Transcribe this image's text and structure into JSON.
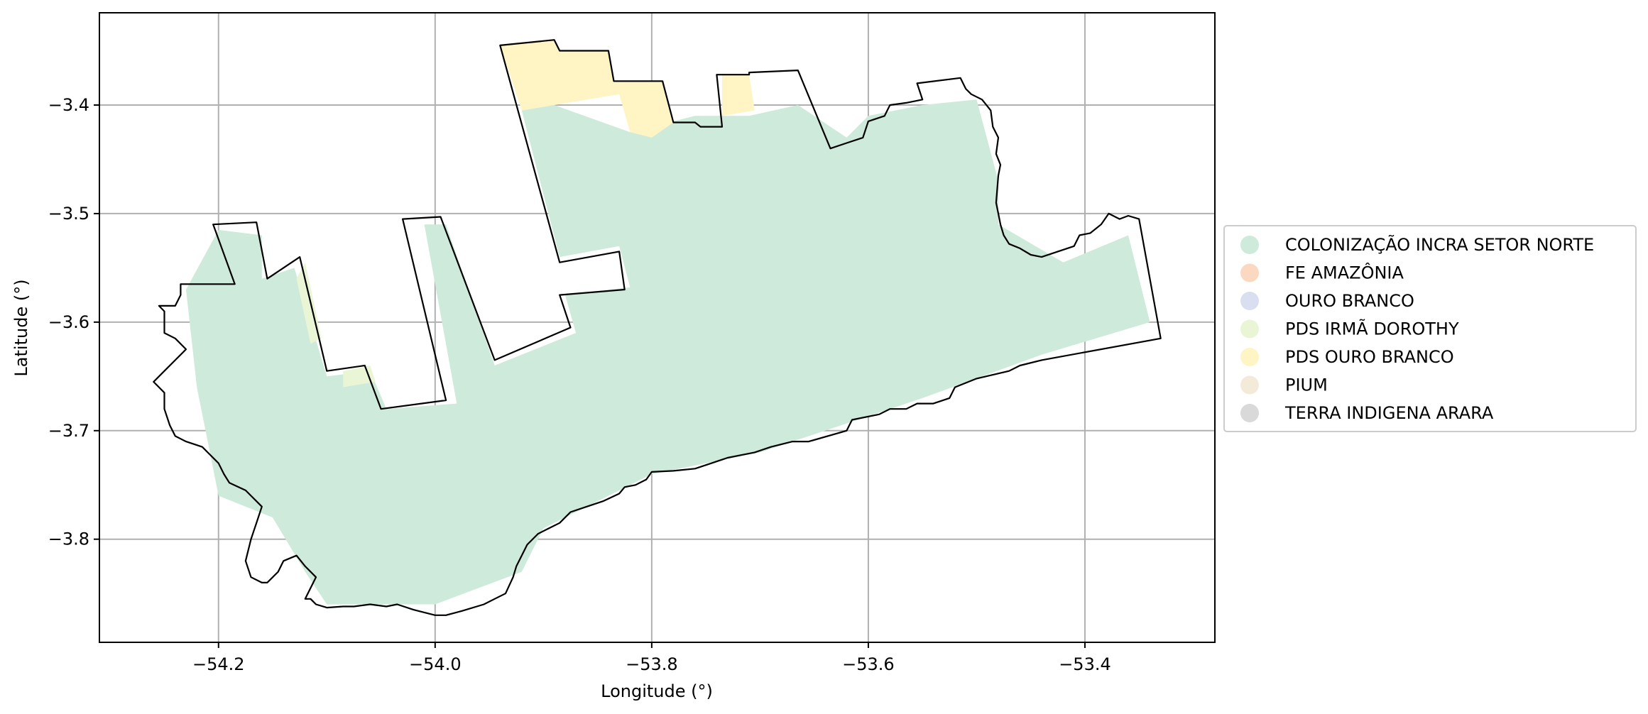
{
  "chart_data": {
    "type": "map",
    "xlabel": "Longitude (°)",
    "ylabel": "Latitude (°)",
    "xlim": [
      -54.31,
      -53.28
    ],
    "ylim": [
      -3.895,
      -3.315
    ],
    "grid": true,
    "x_ticks": [
      -54.2,
      -54.0,
      -53.8,
      -53.6,
      -53.4
    ],
    "x_tick_labels": [
      "−54.2",
      "−54.0",
      "−53.8",
      "−53.6",
      "−53.4"
    ],
    "y_ticks": [
      -3.4,
      -3.5,
      -3.6,
      -3.7,
      -3.8
    ],
    "y_tick_labels": [
      "−3.4",
      "−3.5",
      "−3.6",
      "−3.7",
      "−3.8"
    ],
    "legend_placement": "center-right outside",
    "legend": [
      {
        "label": "COLONIZAÇÃO INCRA SETOR NORTE",
        "color": "#cdeadb"
      },
      {
        "label": "FE AMAZÔNIA",
        "color": "#fbd8c0"
      },
      {
        "label": "OURO BRANCO",
        "color": "#d9dff0"
      },
      {
        "label": "PDS IRMÃ DOROTHY",
        "color": "#eaf5d6"
      },
      {
        "label": "PDS OURO BRANCO",
        "color": "#fef4c4"
      },
      {
        "label": "PIUM",
        "color": "#f4ead9"
      },
      {
        "label": "TERRA INDIGENA ARARA",
        "color": "#d9d9d9"
      }
    ],
    "boundary": [
      [
        -53.94,
        -3.345
      ],
      [
        -53.89,
        -3.34
      ],
      [
        -53.885,
        -3.35
      ],
      [
        -53.84,
        -3.35
      ],
      [
        -53.835,
        -3.378
      ],
      [
        -53.79,
        -3.378
      ],
      [
        -53.78,
        -3.416
      ],
      [
        -53.76,
        -3.416
      ],
      [
        -53.755,
        -3.42
      ],
      [
        -53.735,
        -3.42
      ],
      [
        -53.74,
        -3.372
      ],
      [
        -53.71,
        -3.372
      ],
      [
        -53.71,
        -3.37
      ],
      [
        -53.665,
        -3.368
      ],
      [
        -53.635,
        -3.44
      ],
      [
        -53.62,
        -3.435
      ],
      [
        -53.605,
        -3.43
      ],
      [
        -53.6,
        -3.415
      ],
      [
        -53.585,
        -3.41
      ],
      [
        -53.58,
        -3.4
      ],
      [
        -53.565,
        -3.398
      ],
      [
        -53.55,
        -3.395
      ],
      [
        -53.555,
        -3.38
      ],
      [
        -53.515,
        -3.375
      ],
      [
        -53.51,
        -3.385
      ],
      [
        -53.505,
        -3.39
      ],
      [
        -53.495,
        -3.395
      ],
      [
        -53.487,
        -3.405
      ],
      [
        -53.485,
        -3.42
      ],
      [
        -53.48,
        -3.43
      ],
      [
        -53.482,
        -3.445
      ],
      [
        -53.478,
        -3.455
      ],
      [
        -53.48,
        -3.465
      ],
      [
        -53.482,
        -3.49
      ],
      [
        -53.48,
        -3.5
      ],
      [
        -53.478,
        -3.51
      ],
      [
        -53.475,
        -3.52
      ],
      [
        -53.47,
        -3.528
      ],
      [
        -53.46,
        -3.532
      ],
      [
        -53.45,
        -3.538
      ],
      [
        -53.44,
        -3.54
      ],
      [
        -53.425,
        -3.535
      ],
      [
        -53.41,
        -3.53
      ],
      [
        -53.405,
        -3.52
      ],
      [
        -53.395,
        -3.518
      ],
      [
        -53.385,
        -3.51
      ],
      [
        -53.378,
        -3.5
      ],
      [
        -53.368,
        -3.505
      ],
      [
        -53.36,
        -3.502
      ],
      [
        -53.35,
        -3.505
      ],
      [
        -53.33,
        -3.615
      ],
      [
        -53.44,
        -3.635
      ],
      [
        -53.46,
        -3.64
      ],
      [
        -53.47,
        -3.645
      ],
      [
        -53.5,
        -3.652
      ],
      [
        -53.52,
        -3.66
      ],
      [
        -53.525,
        -3.67
      ],
      [
        -53.54,
        -3.675
      ],
      [
        -53.555,
        -3.675
      ],
      [
        -53.565,
        -3.68
      ],
      [
        -53.58,
        -3.68
      ],
      [
        -53.59,
        -3.685
      ],
      [
        -53.615,
        -3.69
      ],
      [
        -53.62,
        -3.7
      ],
      [
        -53.655,
        -3.71
      ],
      [
        -53.67,
        -3.71
      ],
      [
        -53.69,
        -3.715
      ],
      [
        -53.705,
        -3.72
      ],
      [
        -53.715,
        -3.722
      ],
      [
        -53.73,
        -3.725
      ],
      [
        -53.745,
        -3.73
      ],
      [
        -53.76,
        -3.735
      ],
      [
        -53.78,
        -3.737
      ],
      [
        -53.8,
        -3.738
      ],
      [
        -53.805,
        -3.745
      ],
      [
        -53.815,
        -3.75
      ],
      [
        -53.825,
        -3.752
      ],
      [
        -53.83,
        -3.758
      ],
      [
        -53.845,
        -3.765
      ],
      [
        -53.86,
        -3.77
      ],
      [
        -53.875,
        -3.775
      ],
      [
        -53.885,
        -3.785
      ],
      [
        -53.895,
        -3.79
      ],
      [
        -53.905,
        -3.795
      ],
      [
        -53.915,
        -3.805
      ],
      [
        -53.92,
        -3.815
      ],
      [
        -53.925,
        -3.825
      ],
      [
        -53.928,
        -3.835
      ],
      [
        -53.935,
        -3.85
      ],
      [
        -53.945,
        -3.855
      ],
      [
        -53.955,
        -3.86
      ],
      [
        -53.975,
        -3.866
      ],
      [
        -53.99,
        -3.87
      ],
      [
        -54.0,
        -3.87
      ],
      [
        -54.02,
        -3.865
      ],
      [
        -54.035,
        -3.86
      ],
      [
        -54.045,
        -3.862
      ],
      [
        -54.06,
        -3.86
      ],
      [
        -54.075,
        -3.862
      ],
      [
        -54.085,
        -3.862
      ],
      [
        -54.1,
        -3.863
      ],
      [
        -54.11,
        -3.86
      ],
      [
        -54.115,
        -3.855
      ],
      [
        -54.12,
        -3.855
      ],
      [
        -54.115,
        -3.845
      ],
      [
        -54.11,
        -3.835
      ],
      [
        -54.12,
        -3.825
      ],
      [
        -54.128,
        -3.815
      ],
      [
        -54.14,
        -3.82
      ],
      [
        -54.145,
        -3.83
      ],
      [
        -54.155,
        -3.84
      ],
      [
        -54.16,
        -3.84
      ],
      [
        -54.17,
        -3.835
      ],
      [
        -54.175,
        -3.82
      ],
      [
        -54.17,
        -3.8
      ],
      [
        -54.165,
        -3.785
      ],
      [
        -54.16,
        -3.77
      ],
      [
        -54.17,
        -3.76
      ],
      [
        -54.175,
        -3.755
      ],
      [
        -54.19,
        -3.748
      ],
      [
        -54.195,
        -3.74
      ],
      [
        -54.2,
        -3.73
      ],
      [
        -54.21,
        -3.72
      ],
      [
        -54.215,
        -3.715
      ],
      [
        -54.23,
        -3.71
      ],
      [
        -54.24,
        -3.705
      ],
      [
        -54.245,
        -3.695
      ],
      [
        -54.25,
        -3.68
      ],
      [
        -54.25,
        -3.665
      ],
      [
        -54.255,
        -3.66
      ],
      [
        -54.26,
        -3.655
      ],
      [
        -54.25,
        -3.645
      ],
      [
        -54.24,
        -3.635
      ],
      [
        -54.23,
        -3.625
      ],
      [
        -54.24,
        -3.615
      ],
      [
        -54.25,
        -3.61
      ],
      [
        -54.25,
        -3.59
      ],
      [
        -54.255,
        -3.585
      ],
      [
        -54.24,
        -3.585
      ],
      [
        -54.235,
        -3.575
      ],
      [
        -54.235,
        -3.565
      ],
      [
        -54.185,
        -3.565
      ],
      [
        -54.205,
        -3.51
      ],
      [
        -54.165,
        -3.508
      ],
      [
        -54.155,
        -3.56
      ],
      [
        -54.125,
        -3.54
      ],
      [
        -54.1,
        -3.645
      ],
      [
        -54.065,
        -3.64
      ],
      [
        -54.05,
        -3.68
      ],
      [
        -53.99,
        -3.672
      ],
      [
        -54.03,
        -3.505
      ],
      [
        -53.995,
        -3.503
      ],
      [
        -53.945,
        -3.635
      ],
      [
        -53.875,
        -3.605
      ],
      [
        -53.885,
        -3.575
      ],
      [
        -53.825,
        -3.57
      ],
      [
        -53.83,
        -3.535
      ],
      [
        -53.885,
        -3.545
      ],
      [
        -53.94,
        -3.345
      ]
    ],
    "regions": [
      {
        "name": "COLONIZAÇÃO INCRA SETOR NORTE",
        "polygons": [
          [
            [
              -53.92,
              -3.405
            ],
            [
              -53.89,
              -3.4
            ],
            [
              -53.82,
              -3.425
            ],
            [
              -53.76,
              -3.41
            ],
            [
              -53.71,
              -3.41
            ],
            [
              -53.665,
              -3.4
            ],
            [
              -53.62,
              -3.43
            ],
            [
              -53.6,
              -3.41
            ],
            [
              -53.55,
              -3.4
            ],
            [
              -53.5,
              -3.395
            ],
            [
              -53.48,
              -3.47
            ],
            [
              -53.48,
              -3.51
            ],
            [
              -53.42,
              -3.545
            ],
            [
              -53.36,
              -3.52
            ],
            [
              -53.34,
              -3.6
            ],
            [
              -53.44,
              -3.63
            ],
            [
              -53.55,
              -3.67
            ],
            [
              -53.7,
              -3.72
            ],
            [
              -53.8,
              -3.74
            ],
            [
              -53.9,
              -3.79
            ],
            [
              -53.92,
              -3.83
            ],
            [
              -54.0,
              -3.86
            ],
            [
              -54.1,
              -3.86
            ],
            [
              -54.12,
              -3.83
            ],
            [
              -54.15,
              -3.78
            ],
            [
              -54.2,
              -3.76
            ],
            [
              -54.22,
              -3.66
            ],
            [
              -54.23,
              -3.57
            ],
            [
              -54.2,
              -3.515
            ],
            [
              -54.16,
              -3.52
            ],
            [
              -54.16,
              -3.56
            ],
            [
              -54.13,
              -3.55
            ],
            [
              -54.1,
              -3.65
            ],
            [
              -54.06,
              -3.645
            ],
            [
              -54.045,
              -3.68
            ],
            [
              -53.98,
              -3.675
            ],
            [
              -54.01,
              -3.51
            ],
            [
              -53.99,
              -3.51
            ],
            [
              -53.945,
              -3.64
            ],
            [
              -53.87,
              -3.61
            ],
            [
              -53.88,
              -3.575
            ],
            [
              -53.82,
              -3.568
            ],
            [
              -53.83,
              -3.53
            ],
            [
              -53.885,
              -3.54
            ]
          ]
        ]
      },
      {
        "name": "PDS OURO BRANCO",
        "polygons": [
          [
            [
              -53.94,
              -3.345
            ],
            [
              -53.89,
              -3.34
            ],
            [
              -53.885,
              -3.35
            ],
            [
              -53.84,
              -3.35
            ],
            [
              -53.835,
              -3.378
            ],
            [
              -53.79,
              -3.378
            ],
            [
              -53.78,
              -3.416
            ],
            [
              -53.8,
              -3.43
            ],
            [
              -53.82,
              -3.425
            ],
            [
              -53.83,
              -3.39
            ],
            [
              -53.92,
              -3.405
            ]
          ],
          [
            [
              -53.735,
              -3.372
            ],
            [
              -53.71,
              -3.372
            ],
            [
              -53.705,
              -3.405
            ],
            [
              -53.735,
              -3.41
            ]
          ]
        ]
      },
      {
        "name": "PDS IRMÃ DOROTHY",
        "polygons": [
          [
            [
              -54.12,
              -3.545
            ],
            [
              -54.128,
              -3.56
            ],
            [
              -54.115,
              -3.62
            ],
            [
              -54.105,
              -3.615
            ]
          ],
          [
            [
              -54.085,
              -3.645
            ],
            [
              -54.06,
              -3.64
            ],
            [
              -54.055,
              -3.655
            ],
            [
              -54.085,
              -3.66
            ]
          ]
        ]
      }
    ]
  }
}
